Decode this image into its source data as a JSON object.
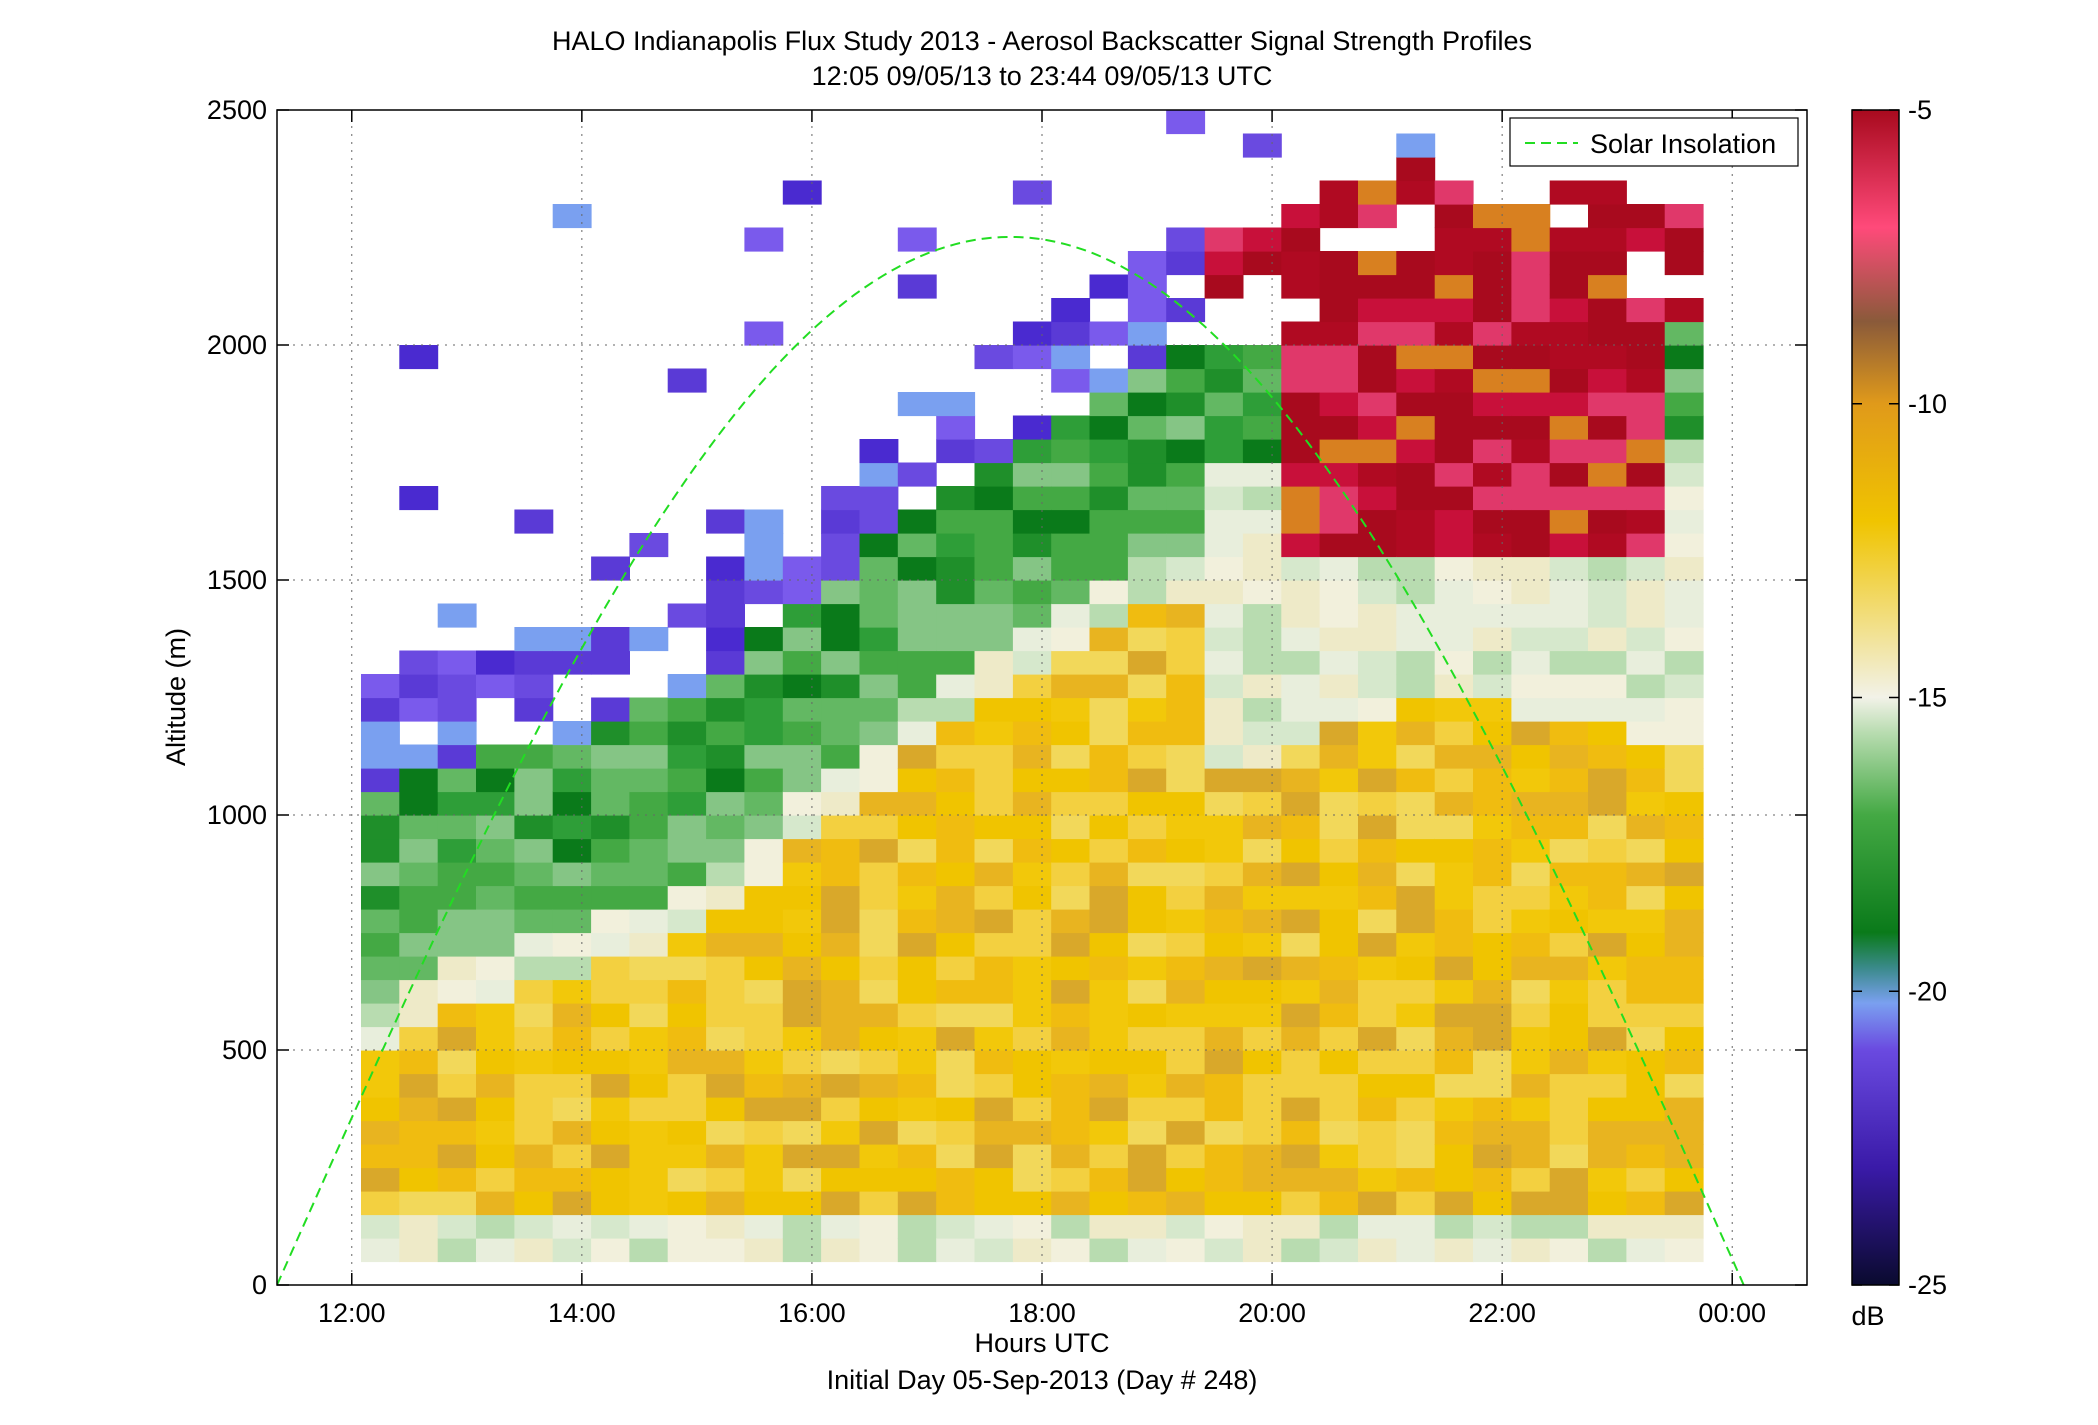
{
  "figure": {
    "title_line1": "HALO Indianapolis Flux Study 2013 - Aerosol Backscatter Signal Strength Profiles",
    "title_line2": "12:05 09/05/13 to 23:44 09/05/13  UTC",
    "footer": "Initial Day 05-Sep-2013 (Day # 248)"
  },
  "chart_data": {
    "type": "heatmap",
    "xlabel": "Hours UTC",
    "ylabel": "Altitude (m)",
    "xlim": [
      11.35,
      24.65
    ],
    "ylim": [
      0,
      2500
    ],
    "x_ticks": [
      12,
      14,
      16,
      18,
      20,
      22,
      24
    ],
    "x_tick_labels": [
      "12:00",
      "14:00",
      "16:00",
      "18:00",
      "20:00",
      "22:00",
      "00:00"
    ],
    "y_ticks": [
      0,
      500,
      1000,
      1500,
      2000,
      2500
    ],
    "y_tick_labels": [
      "0",
      "500",
      "1000",
      "1500",
      "2000",
      "2500"
    ],
    "grid": true,
    "legend": {
      "position": "top-right",
      "entries": [
        "Solar Insolation"
      ]
    },
    "colorbar": {
      "label": "dB",
      "range": [
        -25,
        -5
      ],
      "ticks": [
        -5,
        -10,
        -15,
        -20,
        -25
      ],
      "tick_labels": [
        "-5",
        "-10",
        "-15",
        "-20",
        "-25"
      ]
    },
    "time_range": {
      "start": "12:05 09/05/13",
      "end": "23:44 09/05/13"
    },
    "aerosol_layer_top_m": [
      {
        "hour": 12.1,
        "altitude_m": 1000
      },
      {
        "hour": 13.0,
        "altitude_m": 1100
      },
      {
        "hour": 14.0,
        "altitude_m": 1150
      },
      {
        "hour": 15.0,
        "altitude_m": 1250
      },
      {
        "hour": 16.0,
        "altitude_m": 1450
      },
      {
        "hour": 17.0,
        "altitude_m": 1650
      },
      {
        "hour": 18.0,
        "altitude_m": 1800
      },
      {
        "hour": 19.0,
        "altitude_m": 1950
      },
      {
        "hour": 20.0,
        "altitude_m": 2000
      },
      {
        "hour": 21.0,
        "altitude_m": 2100
      },
      {
        "hour": 22.0,
        "altitude_m": 2100
      },
      {
        "hour": 23.0,
        "altitude_m": 2050
      },
      {
        "hour": 23.7,
        "altitude_m": 2000
      }
    ],
    "solar_insolation": {
      "name": "Solar Insolation",
      "peak_hour": 17.7,
      "peak_altitude_m": 2230,
      "zero_hours": [
        11.35,
        24.1
      ]
    }
  }
}
